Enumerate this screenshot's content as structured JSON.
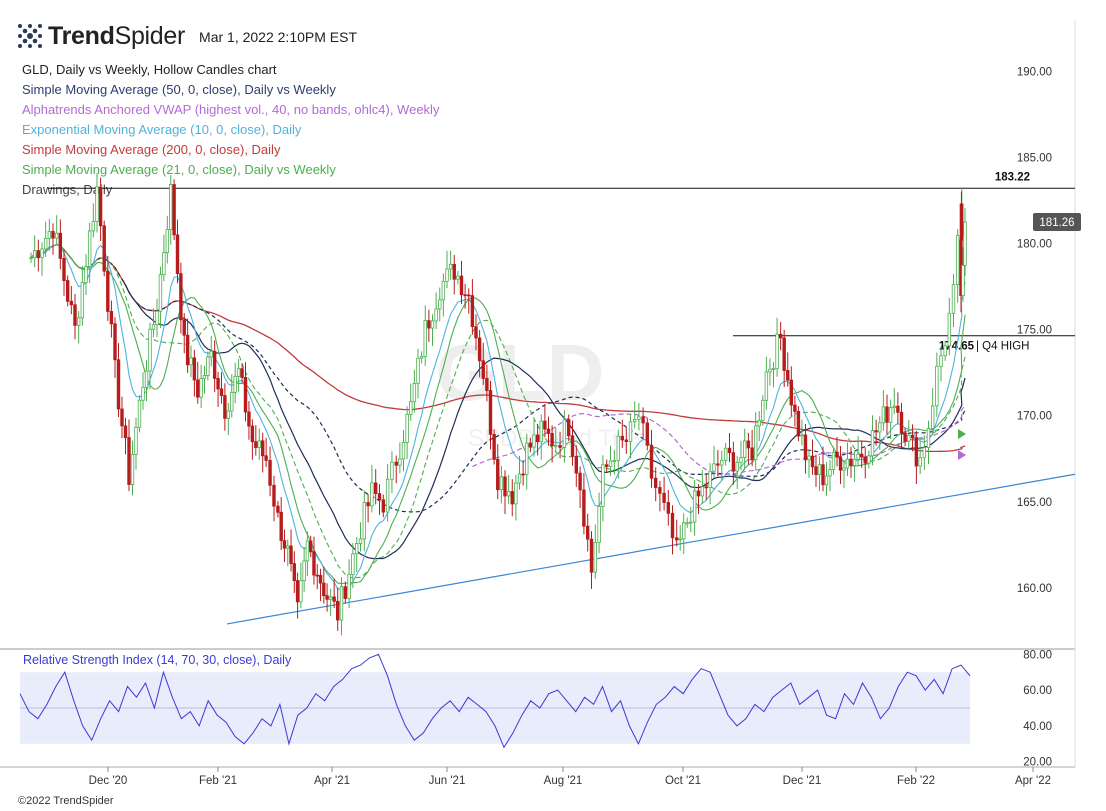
{
  "header": {
    "brand_bold": "Trend",
    "brand_light": "Spider",
    "timestamp": "Mar 1, 2022 2:10PM EST"
  },
  "legend": [
    {
      "label": "GLD, Daily vs Weekly, Hollow Candles chart",
      "color": "#222222"
    },
    {
      "label": "Simple Moving Average (50, 0, close), Daily vs Weekly",
      "color": "#2d3e6e"
    },
    {
      "label": "Alphatrends Anchored VWAP (highest vol., 40, no bands, ohlc4), Weekly",
      "color": "#b46ad6"
    },
    {
      "label": "Exponential Moving Average (10, 0, close), Daily",
      "color": "#4fb3dd"
    },
    {
      "label": "Simple Moving Average (200, 0, close), Daily",
      "color": "#c23b3b"
    },
    {
      "label": "Simple Moving Average (21, 0, close), Daily vs Weekly",
      "color": "#4caf50"
    },
    {
      "label": "Drawings, Daily",
      "color": "#444444"
    }
  ],
  "watermark": {
    "symbol": "GLD",
    "name": "SPDR Gold Trust"
  },
  "copyright": "©2022 TrendSpider",
  "colors": {
    "up": "#4caf50",
    "down": "#b71c1c",
    "sma50": "#1f2d57",
    "vwap": "#b46ad6",
    "ema10": "#4fb3dd",
    "sma200": "#c23b3b",
    "sma21": "#4caf50",
    "trendline": "#3a86d6",
    "rsi": "#3b3bd6",
    "rsi_band": "#e8ecfb",
    "price_tag": "#555555"
  },
  "chart_data": [
    {
      "type": "candlestick",
      "title": "GLD, Daily vs Weekly, Hollow Candles chart",
      "y_ticks": [
        160.0,
        165.0,
        170.0,
        175.0,
        180.0,
        185.0,
        190.0
      ],
      "x_ticks": [
        "Dec '20",
        "Feb '21",
        "Apr '21",
        "Jun '21",
        "Aug '21",
        "Oct '21",
        "Dec '21",
        "Feb '22",
        "Apr '22"
      ],
      "ylim": [
        156.5,
        193
      ],
      "current_price": 181.26,
      "levels": [
        {
          "value": 183.22,
          "label": "183.22",
          "from": "Nov '20",
          "to": "Mar '22"
        },
        {
          "value": 174.65,
          "label": "174.65",
          "note": "| Q4 HIGH",
          "from": "Nov '21",
          "to": "Mar '22"
        }
      ],
      "trendline": {
        "from": [
          "Mar '21",
          157.9
        ],
        "to": [
          "Mar '22",
          166.6
        ]
      },
      "price_path": [
        [
          "Nov '20",
          179.2
        ],
        [
          "Nov '20",
          181.0
        ],
        [
          "Nov '20",
          175.0
        ],
        [
          "Nov '20",
          183.2
        ],
        [
          "Dec '20",
          172.5
        ],
        [
          "Dec '20",
          166.5
        ],
        [
          "Dec '20",
          172.0
        ],
        [
          "Dec '20",
          176.5
        ],
        [
          "Jan '21",
          183.0
        ],
        [
          "Jan '21",
          174.0
        ],
        [
          "Jan '21",
          171.5
        ],
        [
          "Jan '21",
          173.5
        ],
        [
          "Feb '21",
          170.5
        ],
        [
          "Feb '21",
          172.5
        ],
        [
          "Feb '21",
          168.5
        ],
        [
          "Feb '21",
          167.5
        ],
        [
          "Mar '21",
          164.0
        ],
        [
          "Mar '21",
          162.0
        ],
        [
          "Mar '21",
          158.5
        ],
        [
          "Mar '21",
          162.5
        ],
        [
          "Mar '21",
          161.0
        ],
        [
          "Mar '21",
          159.5
        ],
        [
          "Apr '21",
          158.5
        ],
        [
          "Apr '21",
          161.0
        ],
        [
          "Apr '21",
          163.5
        ],
        [
          "Apr '21",
          165.5
        ],
        [
          "Apr '21",
          165.0
        ],
        [
          "May '21",
          167.5
        ],
        [
          "May '21",
          170.5
        ],
        [
          "May '21",
          175.0
        ],
        [
          "May '21",
          177.5
        ],
        [
          "Jun '21",
          178.5
        ],
        [
          "Jun '21",
          177.0
        ],
        [
          "Jun '21",
          172.5
        ],
        [
          "Jun '21",
          166.5
        ],
        [
          "Jul '21",
          165.5
        ],
        [
          "Jul '21",
          168.0
        ],
        [
          "Jul '21",
          169.0
        ],
        [
          "Jul '21",
          168.5
        ],
        [
          "Aug '21",
          169.5
        ],
        [
          "Aug '21",
          166.0
        ],
        [
          "Aug '21",
          161.0
        ],
        [
          "Aug '21",
          166.5
        ],
        [
          "Aug '21",
          168.0
        ],
        [
          "Sep '21",
          168.5
        ],
        [
          "Sep '21",
          170.0
        ],
        [
          "Sep '21",
          166.5
        ],
        [
          "Sep '21",
          164.5
        ],
        [
          "Sep '21",
          162.0
        ],
        [
          "Oct '21",
          164.5
        ],
        [
          "Oct '21",
          166.0
        ],
        [
          "Oct '21",
          167.5
        ],
        [
          "Oct '21",
          167.5
        ],
        [
          "Nov '21",
          168.0
        ],
        [
          "Nov '21",
          172.5
        ],
        [
          "Nov '21",
          174.5
        ],
        [
          "Nov '21",
          170.0
        ],
        [
          "Dec '21",
          167.0
        ],
        [
          "Dec '21",
          166.5
        ],
        [
          "Dec '21",
          167.5
        ],
        [
          "Dec '21",
          167.5
        ],
        [
          "Jan '22",
          168.0
        ],
        [
          "Jan '22",
          169.5
        ],
        [
          "Jan '22",
          171.0
        ],
        [
          "Jan '22",
          168.5
        ],
        [
          "Feb '22",
          167.5
        ],
        [
          "Feb '22",
          169.5
        ],
        [
          "Feb '22",
          172.5
        ],
        [
          "Feb '22",
          174.5
        ],
        [
          "Feb '22",
          177.0
        ],
        [
          "Feb '22",
          182.5
        ],
        [
          "Mar '22",
          176.5
        ],
        [
          "Mar '22",
          181.26
        ]
      ]
    },
    {
      "type": "line",
      "title": "Relative Strength Index (14, 70, 30, close), Daily",
      "y_ticks": [
        20.0,
        40.0,
        60.0,
        80.0
      ],
      "ylim": [
        17,
        83
      ],
      "band": [
        30,
        70
      ],
      "midline": 50,
      "values": [
        58,
        48,
        44,
        52,
        62,
        70,
        54,
        40,
        32,
        44,
        54,
        48,
        62,
        56,
        64,
        50,
        70,
        56,
        44,
        48,
        40,
        54,
        46,
        42,
        34,
        30,
        36,
        44,
        40,
        52,
        30,
        46,
        50,
        58,
        54,
        62,
        66,
        72,
        74,
        78,
        80,
        68,
        52,
        40,
        32,
        36,
        44,
        50,
        54,
        48,
        56,
        52,
        48,
        40,
        28,
        36,
        46,
        54,
        50,
        58,
        60,
        54,
        48,
        56,
        52,
        62,
        48,
        54,
        40,
        30,
        42,
        52,
        56,
        62,
        58,
        66,
        72,
        70,
        58,
        46,
        40,
        44,
        52,
        48,
        56,
        60,
        64,
        52,
        56,
        60,
        46,
        44,
        58,
        52,
        64,
        56,
        44,
        50,
        62,
        70,
        68,
        60,
        66,
        58,
        72,
        74,
        68
      ]
    }
  ]
}
